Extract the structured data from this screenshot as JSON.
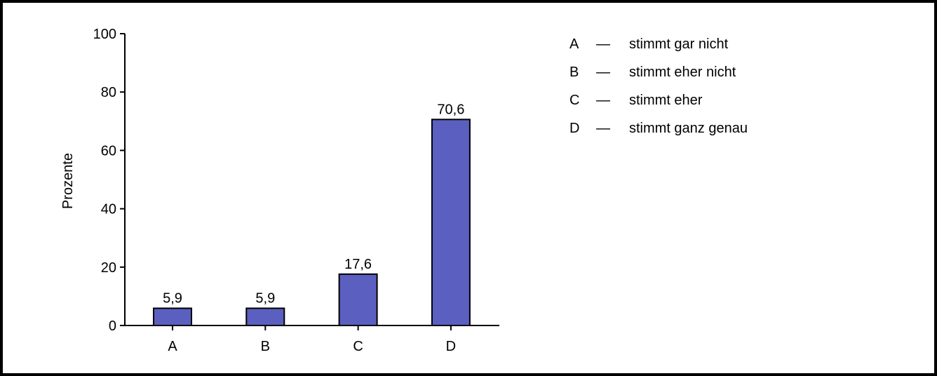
{
  "chart_data": {
    "type": "bar",
    "categories": [
      "A",
      "B",
      "C",
      "D"
    ],
    "values": [
      5.9,
      5.9,
      17.6,
      70.6
    ],
    "value_labels": [
      "5,9",
      "5,9",
      "17,6",
      "70,6"
    ],
    "ylabel": "Prozente",
    "xlabel": "",
    "ylim": [
      0,
      100
    ],
    "yticks": [
      0,
      20,
      40,
      60,
      80,
      100
    ],
    "ytick_labels": [
      "0",
      "20",
      "40",
      "60",
      "80",
      "100"
    ],
    "grid": false,
    "bar_color": "#5b5fc0",
    "legend": [
      {
        "key": "A",
        "dash": "—",
        "text": "stimmt gar nicht"
      },
      {
        "key": "B",
        "dash": "—",
        "text": "stimmt eher nicht"
      },
      {
        "key": "C",
        "dash": "—",
        "text": "stimmt eher"
      },
      {
        "key": "D",
        "dash": "—",
        "text": "stimmt ganz genau"
      }
    ],
    "legend_position": "top-right"
  }
}
